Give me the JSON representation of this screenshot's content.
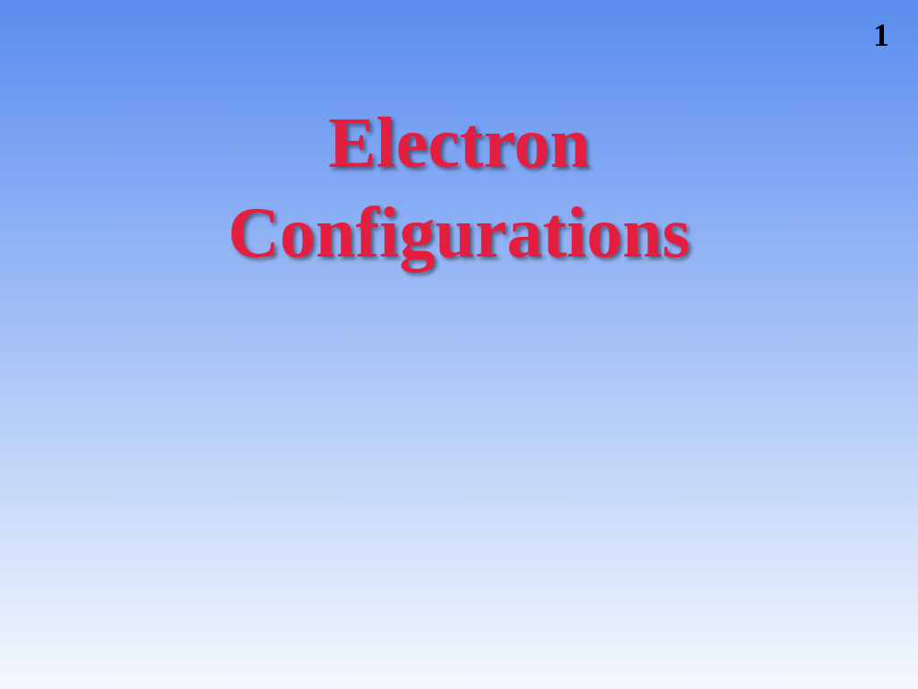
{
  "slide": {
    "page_number": "1",
    "title_line_1": "Electron",
    "title_line_2": "Configurations",
    "background": {
      "gradient_top": "#5a8df0",
      "gradient_bottom": "#f4f8fd"
    },
    "title_style": {
      "color": "#e41e3f",
      "font_family": "Comic Sans MS",
      "font_size_pt": 60,
      "font_weight": "bold",
      "shadow_color": "rgba(0,0,0,0.45)"
    },
    "page_number_style": {
      "color": "#000000",
      "font_size_pt": 27,
      "font_weight": "bold"
    }
  }
}
